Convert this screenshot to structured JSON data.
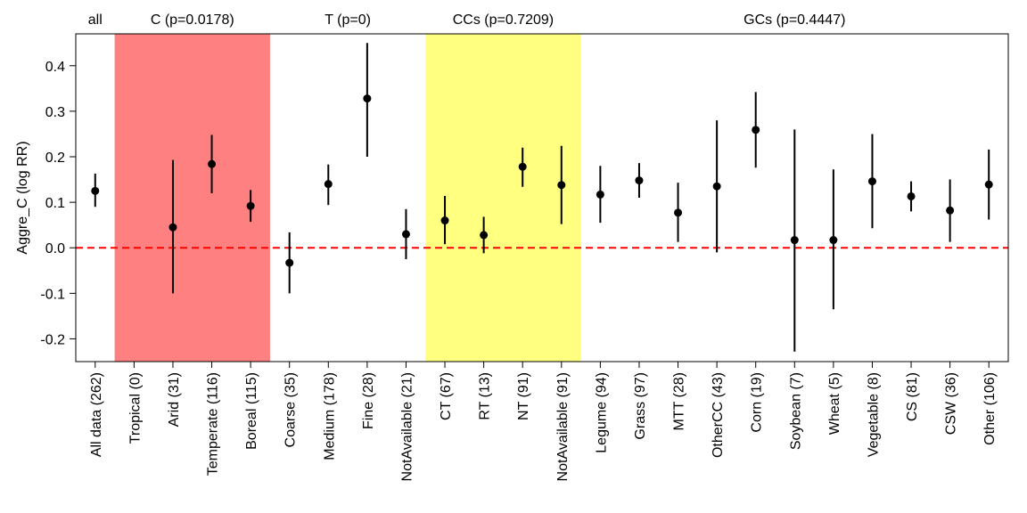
{
  "chart_data": {
    "type": "scatter",
    "ylabel": "Aggre_C (log RR)",
    "ylim": [
      -0.25,
      0.47
    ],
    "yticks": [
      -0.2,
      -0.1,
      0.0,
      0.1,
      0.2,
      0.3,
      0.4
    ],
    "ytick_labels": [
      "-0.2",
      "-0.1",
      "0.0",
      "0.1",
      "0.2",
      "0.3",
      "0.4"
    ],
    "reference_line": {
      "y": 0,
      "color": "#ff0000",
      "style": "dashed"
    },
    "categories": [
      "All data (262)",
      "Tropical (0)",
      "Arid (31)",
      "Temperate (116)",
      "Boreal (115)",
      "Coarse (35)",
      "Medium (178)",
      "Fine (28)",
      "NotAvailable (21)",
      "CT (67)",
      "RT (13)",
      "NT (91)",
      "NotAvailable (91)",
      "Legume (94)",
      "Grass (97)",
      "MTT (28)",
      "OtherCC (43)",
      "Corn (19)",
      "Soybean (7)",
      "Wheat (5)",
      "Vegetable (8)",
      "CS (81)",
      "CSW (36)",
      "Other (106)"
    ],
    "points": [
      {
        "y": 0.125,
        "lo": 0.09,
        "hi": 0.163
      },
      null,
      {
        "y": 0.045,
        "lo": -0.1,
        "hi": 0.193
      },
      {
        "y": 0.184,
        "lo": 0.12,
        "hi": 0.248
      },
      {
        "y": 0.092,
        "lo": 0.057,
        "hi": 0.127
      },
      {
        "y": -0.033,
        "lo": -0.1,
        "hi": 0.034
      },
      {
        "y": 0.14,
        "lo": 0.094,
        "hi": 0.183
      },
      {
        "y": 0.328,
        "lo": 0.2,
        "hi": 0.45
      },
      {
        "y": 0.03,
        "lo": -0.025,
        "hi": 0.085
      },
      {
        "y": 0.06,
        "lo": 0.008,
        "hi": 0.114
      },
      {
        "y": 0.028,
        "lo": -0.012,
        "hi": 0.068
      },
      {
        "y": 0.178,
        "lo": 0.134,
        "hi": 0.22
      },
      {
        "y": 0.138,
        "lo": 0.052,
        "hi": 0.224
      },
      {
        "y": 0.117,
        "lo": 0.055,
        "hi": 0.18
      },
      {
        "y": 0.148,
        "lo": 0.11,
        "hi": 0.186
      },
      {
        "y": 0.077,
        "lo": 0.013,
        "hi": 0.143
      },
      {
        "y": 0.135,
        "lo": -0.01,
        "hi": 0.28
      },
      {
        "y": 0.259,
        "lo": 0.176,
        "hi": 0.342
      },
      {
        "y": 0.017,
        "lo": -0.228,
        "hi": 0.26
      },
      {
        "y": 0.017,
        "lo": -0.135,
        "hi": 0.172
      },
      {
        "y": 0.146,
        "lo": 0.043,
        "hi": 0.25
      },
      {
        "y": 0.113,
        "lo": 0.08,
        "hi": 0.146
      },
      {
        "y": 0.082,
        "lo": 0.013,
        "hi": 0.15
      },
      {
        "y": 0.139,
        "lo": 0.062,
        "hi": 0.216
      }
    ],
    "groups": [
      {
        "label": "all",
        "start": 0,
        "end": 0,
        "shade": null
      },
      {
        "label": "C (p=0.0178)",
        "start": 1,
        "end": 4,
        "shade": "#ff8080"
      },
      {
        "label": "T (p=0)",
        "start": 5,
        "end": 8,
        "shade": null
      },
      {
        "label": "CCs (p=0.7209)",
        "start": 9,
        "end": 12,
        "shade": "#ffff80"
      },
      {
        "label": "GCs (p=0.4447)",
        "start": 13,
        "end": 23,
        "shade": null
      }
    ],
    "grid": false,
    "colors": {
      "points": "#000000",
      "reference": "#ff0000"
    }
  }
}
